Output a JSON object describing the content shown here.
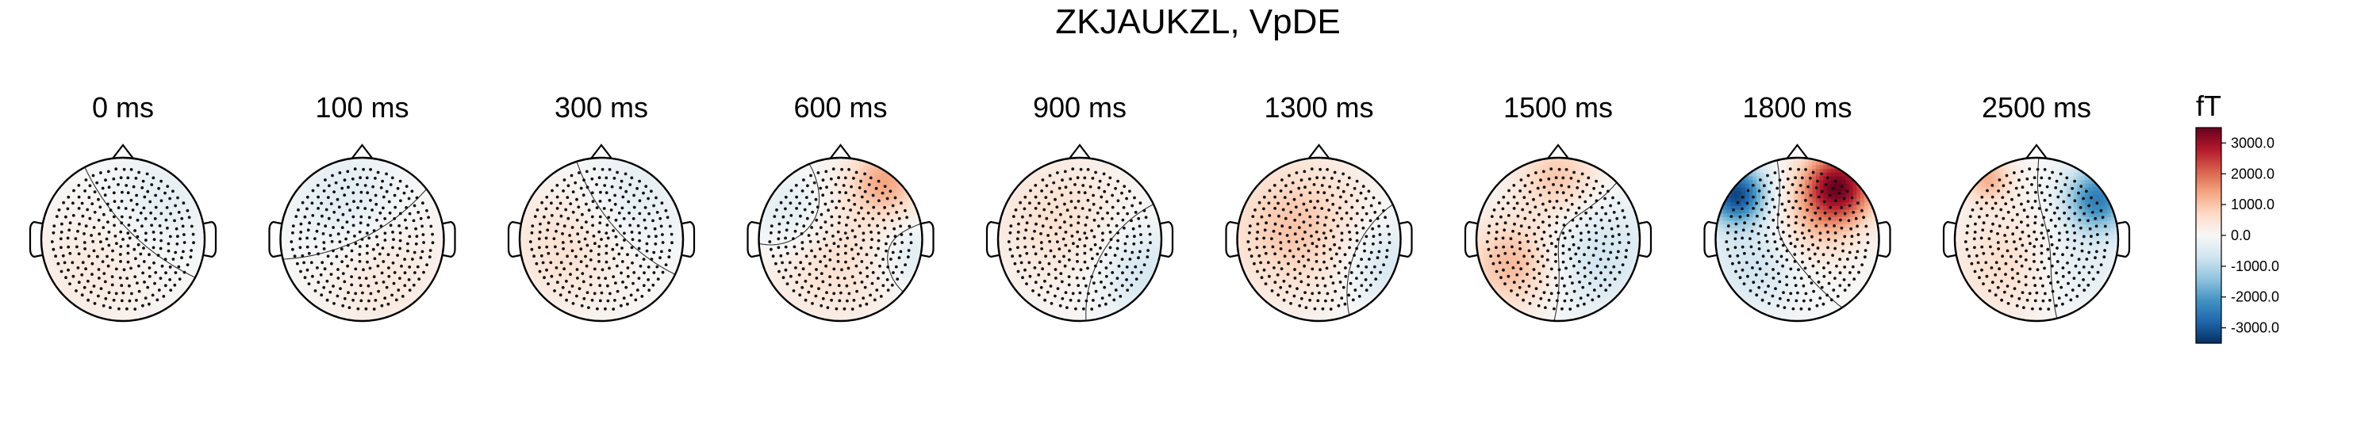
{
  "chart_data": {
    "type": "heatmap",
    "title": "ZKJAUKZL, VpDE",
    "topomaps": [
      {
        "label": "0 ms",
        "sources": [
          {
            "x": -0.35,
            "y": -0.35,
            "v": 350,
            "s": 0.55
          },
          {
            "x": 0.45,
            "y": 0.45,
            "v": -350,
            "s": 0.45
          }
        ]
      },
      {
        "label": "100 ms",
        "sources": [
          {
            "x": -0.2,
            "y": 0.45,
            "v": -450,
            "s": 0.45
          },
          {
            "x": 0.25,
            "y": -0.45,
            "v": 400,
            "s": 0.55
          }
        ]
      },
      {
        "label": "300 ms",
        "sources": [
          {
            "x": -0.45,
            "y": -0.1,
            "v": 550,
            "s": 0.55
          },
          {
            "x": 0.35,
            "y": 0.5,
            "v": -400,
            "s": 0.45
          }
        ]
      },
      {
        "label": "600 ms",
        "sources": [
          {
            "x": 0.55,
            "y": 0.72,
            "v": 1300,
            "s": 0.3
          },
          {
            "x": -0.1,
            "y": -0.2,
            "v": 600,
            "s": 0.6
          },
          {
            "x": -0.6,
            "y": 0.3,
            "v": -600,
            "s": 0.35
          },
          {
            "x": 0.85,
            "y": -0.2,
            "v": -500,
            "s": 0.3
          }
        ]
      },
      {
        "label": "900 ms",
        "sources": [
          {
            "x": -0.3,
            "y": 0.25,
            "v": 550,
            "s": 0.6
          },
          {
            "x": 0.75,
            "y": -0.4,
            "v": -650,
            "s": 0.4
          }
        ]
      },
      {
        "label": "1300 ms",
        "sources": [
          {
            "x": -0.3,
            "y": 0.15,
            "v": 1000,
            "s": 0.6
          },
          {
            "x": 0.8,
            "y": -0.3,
            "v": -650,
            "s": 0.4
          }
        ]
      },
      {
        "label": "1500 ms",
        "sources": [
          {
            "x": 0.0,
            "y": 0.75,
            "v": 1000,
            "s": 0.35
          },
          {
            "x": -0.55,
            "y": -0.3,
            "v": 1200,
            "s": 0.4
          },
          {
            "x": 0.45,
            "y": -0.2,
            "v": -700,
            "s": 0.5
          }
        ]
      },
      {
        "label": "1800 ms",
        "sources": [
          {
            "x": 0.5,
            "y": 0.65,
            "v": 3300,
            "s": 0.3
          },
          {
            "x": -0.75,
            "y": 0.55,
            "v": -3200,
            "s": 0.25
          },
          {
            "x": 0.2,
            "y": 0.15,
            "v": 800,
            "s": 0.35
          },
          {
            "x": -0.5,
            "y": -0.3,
            "v": -700,
            "s": 0.4
          }
        ]
      },
      {
        "label": "2500 ms",
        "sources": [
          {
            "x": 0.75,
            "y": 0.5,
            "v": -2400,
            "s": 0.28
          },
          {
            "x": -0.6,
            "y": 0.75,
            "v": 1200,
            "s": 0.2
          },
          {
            "x": -0.3,
            "y": -0.3,
            "v": 700,
            "s": 0.5
          },
          {
            "x": 0.4,
            "y": -0.3,
            "v": -500,
            "s": 0.45
          }
        ]
      }
    ],
    "colorbar": {
      "unit": "fT",
      "vmin": -3500,
      "vmax": 3500,
      "ticks": [
        3000,
        2000,
        1000,
        0,
        -1000,
        -2000,
        -3000
      ],
      "tick_labels": [
        "3000.0",
        "2000.0",
        "1000.0",
        "0.0",
        "-1000.0",
        "-2000.0",
        "-3000.0"
      ],
      "colormap": [
        "#053061",
        "#2166ac",
        "#4393c3",
        "#92c5de",
        "#d1e5f0",
        "#f7f7f7",
        "#fddbc7",
        "#f4a582",
        "#d6604d",
        "#b2182b",
        "#67001f"
      ]
    },
    "grid": false
  }
}
